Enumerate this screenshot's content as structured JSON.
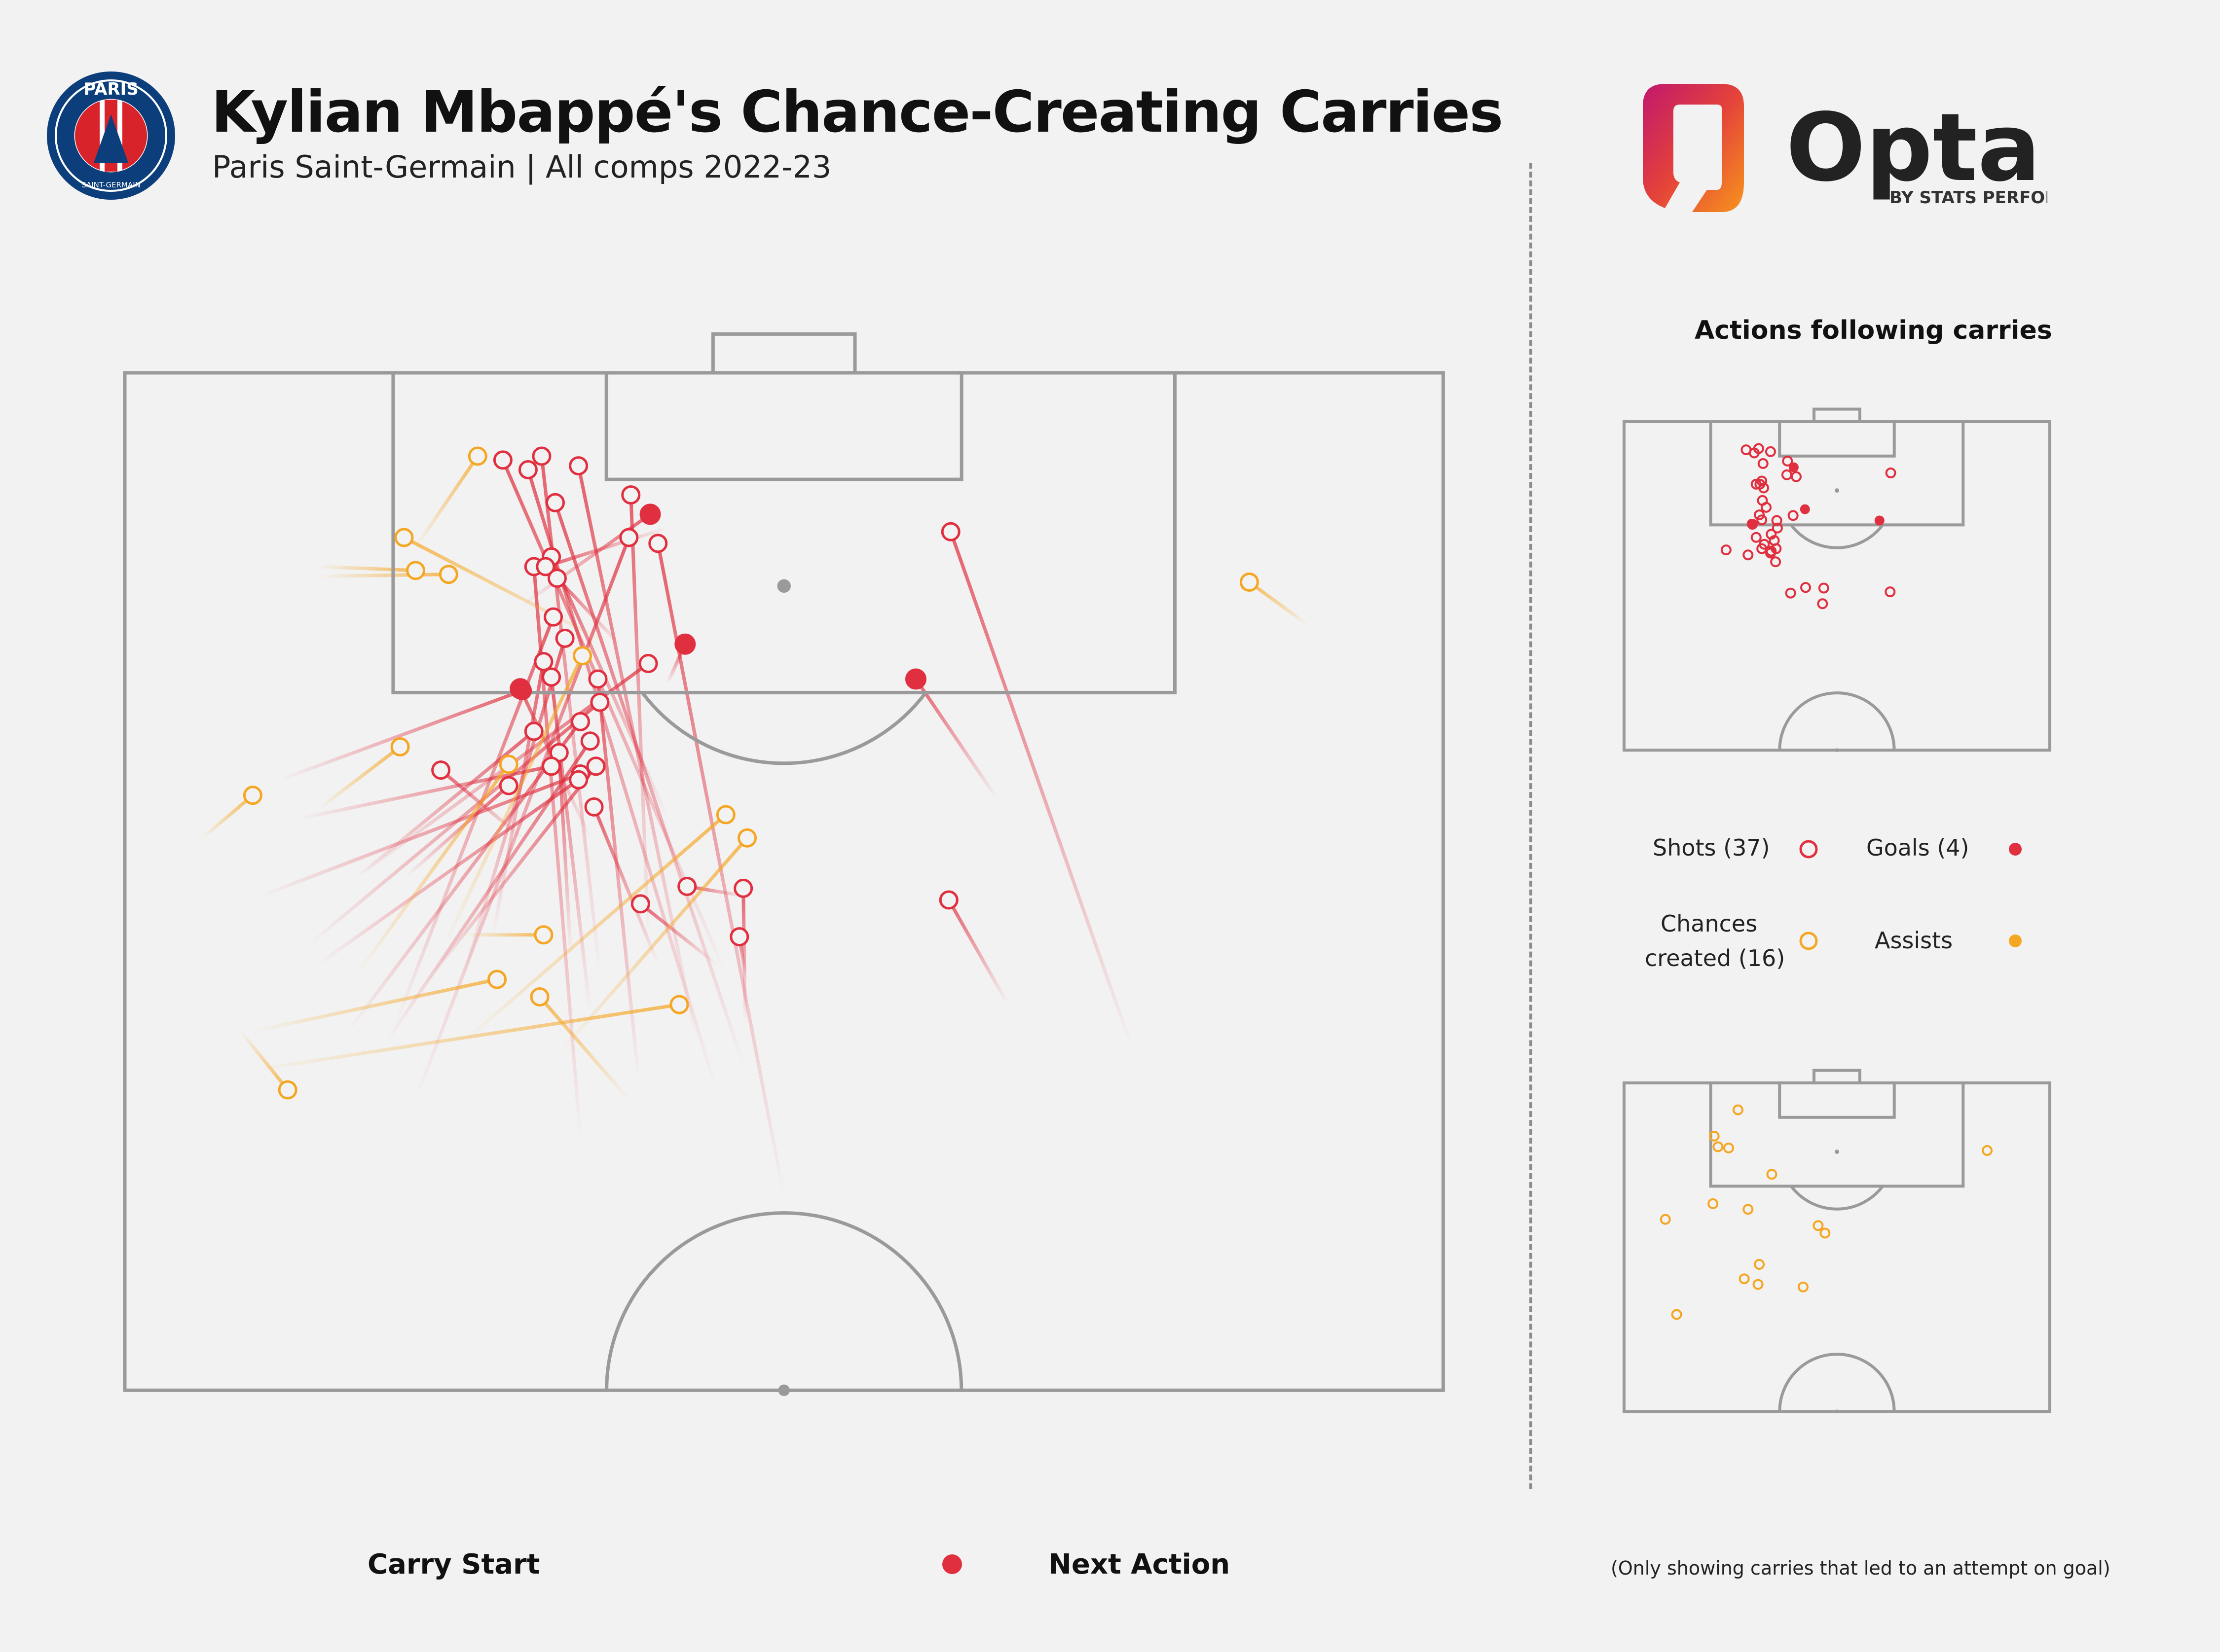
{
  "header": {
    "title": "Kylian Mbappé's Chance-Creating Carries",
    "subtitle": "Paris Saint-Germain | All comps 2022-23"
  },
  "crest": {
    "top_text": "PARIS",
    "bottom_text": "SAINT-GERMAIN"
  },
  "brand": {
    "name": "Opta",
    "byline": "BY STATS PERFORM"
  },
  "side_panel": {
    "title": "Actions following carries",
    "legend": {
      "shots": "Shots (37)",
      "goals": "Goals (4)",
      "chances_line1": "Chances",
      "chances_line2": "created (16)",
      "assists": "Assists"
    }
  },
  "legend_bottom": {
    "start_label": "Carry Start",
    "end_label": "Next Action"
  },
  "footnote": "(Only showing carries that led to an attempt on goal)",
  "colors": {
    "shot": "#e03040",
    "goal": "#e03040",
    "chance": "#f5a623",
    "pitch_line": "#9a9a9a",
    "background": "#f2f2f2"
  },
  "chart_data": {
    "type": "scatter",
    "pitch": "half-pitch, attacking upward; coordinates in metres (x across width 0-68, y = distance from goal line)",
    "carries": [
      {
        "type": "shot",
        "start": [
          28.0,
          23.0
        ],
        "end": [
          22.0,
          9.5
        ]
      },
      {
        "type": "shot",
        "start": [
          32.0,
          36.0
        ],
        "end": [
          22.2,
          6.7
        ]
      },
      {
        "type": "shot",
        "start": [
          31.0,
          31.0
        ],
        "end": [
          19.5,
          4.5
        ]
      },
      {
        "type": "shot",
        "start": [
          30.5,
          37.0
        ],
        "end": [
          20.8,
          5.0
        ]
      },
      {
        "type": "shot",
        "start": [
          24.5,
          31.0
        ],
        "end": [
          21.5,
          4.3
        ]
      },
      {
        "type": "shot",
        "start": [
          29.5,
          34.5
        ],
        "end": [
          23.4,
          4.8
        ]
      },
      {
        "type": "shot",
        "start": [
          34.0,
          42.5
        ],
        "end": [
          27.5,
          8.8
        ]
      },
      {
        "type": "shot",
        "start": [
          27.0,
          29.0
        ],
        "end": [
          26.1,
          6.3
        ]
      },
      {
        "type": "shot",
        "start": [
          23.5,
          39.5
        ],
        "end": [
          21.1,
          10.0
        ]
      },
      {
        "type": "shot",
        "start": [
          15.0,
          37.5
        ],
        "end": [
          26.0,
          8.5
        ]
      },
      {
        "type": "shot",
        "start": [
          14.0,
          33.5
        ],
        "end": [
          22.1,
          12.6
        ]
      },
      {
        "type": "shot",
        "start": [
          17.5,
          31.0
        ],
        "end": [
          22.7,
          13.7
        ]
      },
      {
        "type": "shot",
        "start": [
          19.0,
          29.0
        ],
        "end": [
          21.6,
          14.9
        ]
      },
      {
        "type": "shot",
        "start": [
          24.0,
          33.0
        ],
        "end": [
          22.0,
          15.7
        ]
      },
      {
        "type": "shot",
        "start": [
          26.5,
          36.5
        ],
        "end": [
          24.4,
          15.8
        ]
      },
      {
        "type": "shot",
        "start": [
          8.0,
          21.0
        ],
        "end": [
          20.5,
          16.4
        ]
      },
      {
        "type": "shot",
        "start": [
          12.0,
          26.0
        ],
        "end": [
          27.0,
          15.0
        ]
      },
      {
        "type": "shot",
        "start": [
          9.5,
          29.5
        ],
        "end": [
          24.5,
          17.0
        ]
      },
      {
        "type": "shot",
        "start": [
          11.5,
          34.0
        ],
        "end": [
          23.5,
          18.0
        ]
      },
      {
        "type": "shot",
        "start": [
          12.0,
          26.0
        ],
        "end": [
          21.1,
          18.5
        ]
      },
      {
        "type": "shot",
        "start": [
          13.5,
          34.5
        ],
        "end": [
          24.0,
          19.0
        ]
      },
      {
        "type": "shot",
        "start": [
          23.0,
          30.0
        ],
        "end": [
          22.4,
          19.6
        ]
      },
      {
        "type": "shot",
        "start": [
          9.0,
          23.0
        ],
        "end": [
          22.0,
          20.3
        ]
      },
      {
        "type": "shot",
        "start": [
          15.5,
          31.5
        ],
        "end": [
          24.3,
          20.3
        ]
      },
      {
        "type": "shot",
        "start": [
          7.0,
          27.0
        ],
        "end": [
          23.5,
          20.7
        ]
      },
      {
        "type": "shot",
        "start": [
          10.0,
          30.5
        ],
        "end": [
          23.4,
          21.0
        ]
      },
      {
        "type": "shot",
        "start": [
          14.5,
          26.0
        ],
        "end": [
          19.8,
          21.3
        ]
      },
      {
        "type": "shot",
        "start": [
          27.5,
          30.5
        ],
        "end": [
          24.2,
          22.4
        ]
      },
      {
        "type": "shot",
        "start": [
          30.5,
          30.5
        ],
        "end": [
          26.6,
          27.4
        ]
      },
      {
        "type": "shot",
        "start": [
          32.0,
          33.5
        ],
        "end": [
          31.9,
          26.6
        ]
      },
      {
        "type": "shot",
        "start": [
          32.0,
          31.0
        ],
        "end": [
          31.7,
          29.1
        ]
      },
      {
        "type": "shot",
        "start": [
          32.0,
          27.0
        ],
        "end": [
          29.0,
          26.5
        ]
      },
      {
        "type": "shot",
        "start": [
          28.0,
          8.0
        ],
        "end": [
          21.7,
          10.0
        ]
      },
      {
        "type": "shot",
        "start": [
          20.5,
          24.0
        ],
        "end": [
          16.3,
          20.5
        ]
      },
      {
        "type": "shot",
        "start": [
          25.5,
          14.0
        ],
        "end": [
          22.3,
          10.6
        ]
      },
      {
        "type": "shot",
        "start": [
          52.0,
          35.0
        ],
        "end": [
          42.6,
          8.2
        ]
      },
      {
        "type": "shot",
        "start": [
          45.5,
          32.5
        ],
        "end": [
          42.5,
          27.2
        ]
      },
      {
        "type": "goal",
        "start": [
          20.5,
          12.0
        ],
        "end": [
          27.1,
          7.3
        ]
      },
      {
        "type": "goal",
        "start": [
          28.0,
          16.0
        ],
        "end": [
          28.9,
          14.0
        ]
      },
      {
        "type": "goal",
        "start": [
          24.0,
          24.0
        ],
        "end": [
          20.4,
          16.3
        ]
      },
      {
        "type": "goal",
        "start": [
          45.0,
          22.0
        ],
        "end": [
          40.8,
          15.8
        ]
      },
      {
        "type": "chance",
        "start": [
          15.0,
          9.0
        ],
        "end": [
          18.2,
          4.3
        ]
      },
      {
        "type": "chance",
        "start": [
          4.0,
          24.0
        ],
        "end": [
          6.6,
          21.8
        ]
      },
      {
        "type": "chance",
        "start": [
          10.0,
          10.0
        ],
        "end": [
          15.0,
          10.2
        ]
      },
      {
        "type": "chance",
        "start": [
          10.0,
          10.5
        ],
        "end": [
          16.7,
          10.4
        ]
      },
      {
        "type": "chance",
        "start": [
          25.0,
          14.0
        ],
        "end": [
          14.4,
          8.5
        ]
      },
      {
        "type": "chance",
        "start": [
          16.5,
          29.5
        ],
        "end": [
          23.6,
          14.6
        ]
      },
      {
        "type": "chance",
        "start": [
          12.0,
          31.0
        ],
        "end": [
          19.8,
          20.2
        ]
      },
      {
        "type": "chance",
        "start": [
          17.5,
          34.5
        ],
        "end": [
          31.0,
          22.8
        ]
      },
      {
        "type": "chance",
        "start": [
          10.0,
          22.5
        ],
        "end": [
          14.2,
          19.3
        ]
      },
      {
        "type": "chance",
        "start": [
          22.5,
          35.0
        ],
        "end": [
          32.1,
          24.0
        ]
      },
      {
        "type": "chance",
        "start": [
          17.5,
          29.0
        ],
        "end": [
          21.6,
          29.0
        ]
      },
      {
        "type": "chance",
        "start": [
          6.5,
          34.0
        ],
        "end": [
          19.2,
          31.3
        ]
      },
      {
        "type": "chance",
        "start": [
          26.0,
          37.5
        ],
        "end": [
          21.4,
          32.2
        ]
      },
      {
        "type": "chance",
        "start": [
          6.5,
          36.0
        ],
        "end": [
          28.6,
          32.6
        ]
      },
      {
        "type": "chance",
        "start": [
          6.0,
          34.0
        ],
        "end": [
          8.4,
          37.0
        ]
      },
      {
        "type": "chance",
        "start": [
          61.0,
          13.0
        ],
        "end": [
          58.0,
          10.8
        ]
      }
    ],
    "xlim": [
      0,
      68
    ],
    "ylim": [
      0,
      52.5
    ],
    "legend": [
      "Shots (37)",
      "Goals (4)",
      "Chances created (16)",
      "Assists"
    ]
  }
}
